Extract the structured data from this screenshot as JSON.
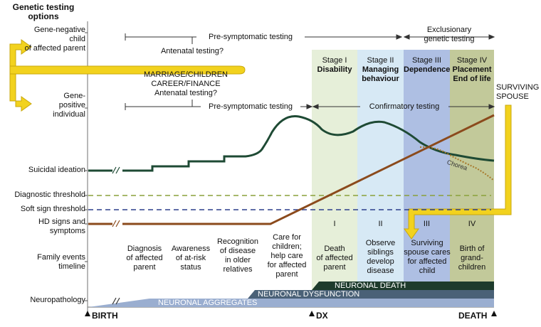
{
  "header": {
    "title_line1": "Genetic testing",
    "title_line2": "options"
  },
  "rows": {
    "gene_negative": [
      "Gene-negative",
      "child",
      "of affected parent"
    ],
    "gene_positive": [
      "Gene-",
      "positive",
      "individual"
    ],
    "suicidal": "Suicidal ideation",
    "diagnostic": "Diagnostic threshold",
    "soft_sign": "Soft sign threshold",
    "hd_signs": [
      "HD signs and",
      "symptoms"
    ],
    "family_events": [
      "Family events",
      "timeline"
    ],
    "neuropathology": "Neuropathology"
  },
  "testing": {
    "exclusionary": [
      "Exclusionary",
      "genetic testing"
    ],
    "presymptomatic_top": "Pre-symptomatic testing",
    "antenatal_top": "Antenatal testing?",
    "life_events": [
      "MARRIAGE/CHILDREN",
      "CAREER/FINANCE",
      "Antenatal testing?"
    ],
    "presymptomatic_bottom": "Pre-symptomatic testing",
    "confirmatory": "Confirmatory testing"
  },
  "stages": [
    {
      "line1": "Stage I",
      "line2": "Disability",
      "line3": "",
      "roman": "I",
      "color": "#e6efd9"
    },
    {
      "line1": "Stage II",
      "line2": "Managing",
      "line3": "behaviour",
      "roman": "II",
      "color": "#d7e9f5"
    },
    {
      "line1": "Stage III",
      "line2": "Dependence",
      "line3": "",
      "roman": "III",
      "color": "#aebfe3"
    },
    {
      "line1": "Stage IV",
      "line2": "Placement",
      "line3": "End of life",
      "roman": "IV",
      "color": "#c2c99a"
    }
  ],
  "surviving_spouse": [
    "SURVIVING",
    "SPOUSE"
  ],
  "chorea": "Chorea",
  "events": [
    [
      "Diagnosis",
      "of affected",
      "parent"
    ],
    [
      "Awareness",
      "of at-risk",
      "status"
    ],
    [
      "Recognition",
      "of disease",
      "in older",
      "relatives"
    ],
    [
      "Care for",
      "children;",
      "help care",
      "for affected",
      "parent"
    ],
    [
      "Death",
      "of affected",
      "parent"
    ],
    [
      "Observe",
      "siblings",
      "develop",
      "disease"
    ],
    [
      "Surviving",
      "spouse cares",
      "for affected",
      "child"
    ],
    [
      "Birth of",
      "grand-",
      "children"
    ]
  ],
  "neuro": {
    "death": "NEURONAL DEATH",
    "dysfunction": "NEURONAL DYSFUNCTION",
    "aggregates": "NEURONAL AGGREGATES"
  },
  "axis": {
    "birth": "BIRTH",
    "dx": "DX",
    "death": "DEATH"
  },
  "colors": {
    "arrow_yellow": "#f2d21e",
    "suicidal_line": "#1e4a34",
    "hd_line": "#8b4a1c",
    "diagnostic_dash": "#8aa13a",
    "soft_sign_dash": "#2c3f8c",
    "neuronal_death": "#1e3b2c",
    "neuronal_dysfunction": "#4a6177",
    "neuronal_aggregates": "#9aaed0"
  }
}
